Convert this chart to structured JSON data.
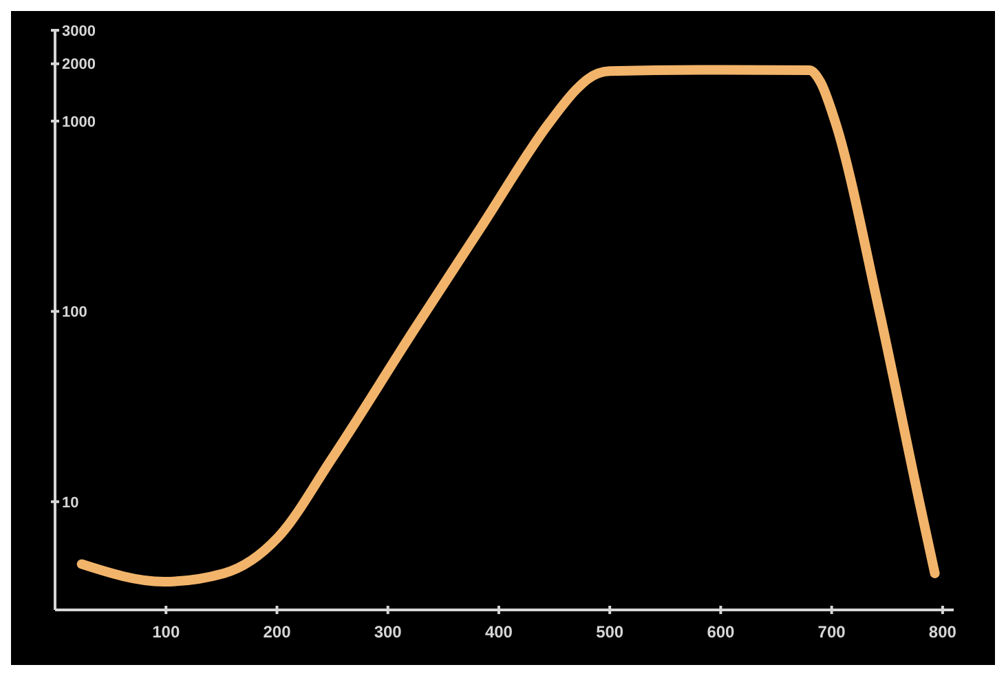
{
  "chart_data": {
    "type": "line",
    "log": "y",
    "xlim": [
      0,
      810
    ],
    "xticks": [
      100,
      200,
      300,
      400,
      500,
      600,
      700,
      800
    ],
    "ylim": [
      2.7,
      3000
    ],
    "yticks": [
      10,
      100,
      1000,
      2000,
      3000
    ],
    "grid": false,
    "marker": "none",
    "line_style": "solid",
    "series": [
      {
        "color": "#f2b46a",
        "x": [
          24,
          98,
          152,
          201,
          250,
          323,
          384,
          445,
          470,
          480,
          500,
          600,
          680,
          690,
          703,
          743,
          779,
          793
        ],
        "values": [
          4.7,
          3.8,
          4.2,
          6.5,
          17,
          79,
          277,
          970,
          1470,
          1660,
          1830,
          1860,
          1850,
          1600,
          1000,
          100,
          10,
          4.2
        ]
      }
    ]
  }
}
